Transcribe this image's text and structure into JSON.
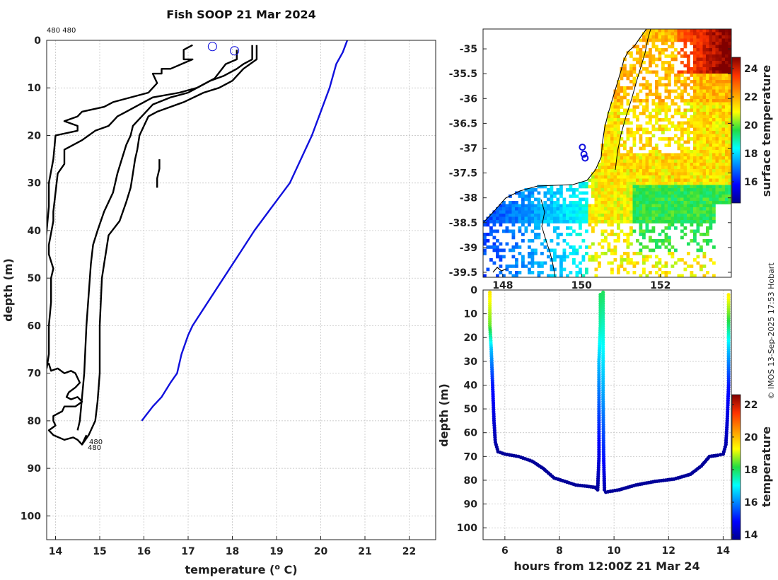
{
  "chart_data": [
    {
      "type": "line",
      "title": "Fish SOOP 21 Mar 2024",
      "corner_label": "480 480",
      "xlabel": "temperature (",
      "xlabel_sup": "o",
      "xlabel_end": " C)",
      "ylabel": "depth (m)",
      "xlim": [
        13.8,
        22.6
      ],
      "ylim": [
        105,
        0
      ],
      "xticks": [
        14,
        15,
        16,
        17,
        18,
        19,
        20,
        21,
        22
      ],
      "yticks": [
        0,
        10,
        20,
        30,
        40,
        50,
        60,
        70,
        80,
        90,
        100
      ],
      "tag_labels": [
        "480",
        "480"
      ],
      "series": [
        {
          "name": "profile-1",
          "color": "#000000",
          "points": [
            [
              17.1,
              1
            ],
            [
              16.9,
              2
            ],
            [
              16.9,
              4
            ],
            [
              17.1,
              4
            ],
            [
              16.6,
              6
            ],
            [
              16.4,
              6
            ],
            [
              16.4,
              7
            ],
            [
              16.2,
              7
            ],
            [
              16.3,
              9
            ],
            [
              16.1,
              11
            ],
            [
              15.3,
              13
            ],
            [
              15.1,
              14
            ],
            [
              14.6,
              15
            ],
            [
              14.5,
              16
            ],
            [
              14.2,
              17
            ],
            [
              14.5,
              18
            ],
            [
              14.5,
              19
            ],
            [
              14.0,
              20
            ],
            [
              13.95,
              25
            ],
            [
              13.85,
              30
            ],
            [
              13.85,
              35
            ],
            [
              13.8,
              40
            ],
            [
              13.75,
              45
            ],
            [
              13.7,
              55
            ],
            [
              13.7,
              65
            ],
            [
              13.7,
              69
            ]
          ]
        },
        {
          "name": "profile-2",
          "color": "#000000",
          "points": [
            [
              18.1,
              2
            ],
            [
              18.1,
              4
            ],
            [
              17.85,
              5
            ],
            [
              17.6,
              8
            ],
            [
              17.2,
              10
            ],
            [
              16.8,
              11
            ],
            [
              16.2,
              12
            ],
            [
              15.9,
              13.5
            ],
            [
              15.6,
              15
            ],
            [
              15.4,
              16
            ],
            [
              15.3,
              17
            ],
            [
              15.2,
              18
            ],
            [
              14.9,
              19
            ],
            [
              14.6,
              21
            ],
            [
              14.2,
              23
            ],
            [
              14.2,
              26
            ],
            [
              14.05,
              28
            ],
            [
              14.0,
              32
            ],
            [
              13.95,
              36
            ],
            [
              13.95,
              38
            ],
            [
              13.85,
              43
            ],
            [
              13.85,
              45
            ],
            [
              13.95,
              48
            ],
            [
              13.9,
              50
            ],
            [
              13.9,
              55
            ],
            [
              13.85,
              60
            ],
            [
              13.85,
              66
            ],
            [
              13.8,
              69
            ]
          ]
        },
        {
          "name": "profile-3",
          "color": "#000000",
          "points": [
            [
              18.45,
              1
            ],
            [
              18.45,
              4
            ],
            [
              18.25,
              5
            ],
            [
              18.1,
              6
            ],
            [
              17.8,
              7.5
            ],
            [
              17.5,
              8.5
            ],
            [
              17.0,
              11
            ],
            [
              16.6,
              12
            ],
            [
              16.2,
              13.5
            ],
            [
              16.05,
              15
            ],
            [
              15.85,
              17
            ],
            [
              15.75,
              18
            ],
            [
              15.7,
              20
            ],
            [
              15.6,
              22
            ],
            [
              15.5,
              25
            ],
            [
              15.4,
              28
            ],
            [
              15.3,
              32
            ],
            [
              15.1,
              36
            ],
            [
              14.95,
              40
            ],
            [
              14.85,
              43
            ],
            [
              14.8,
              47
            ],
            [
              14.7,
              60
            ],
            [
              14.65,
              70
            ],
            [
              14.6,
              75
            ],
            [
              14.55,
              80
            ],
            [
              14.5,
              82
            ]
          ]
        },
        {
          "name": "profile-4",
          "color": "#000000",
          "points": [
            [
              18.55,
              1
            ],
            [
              18.55,
              4
            ],
            [
              18.25,
              6
            ],
            [
              18.0,
              8.5
            ],
            [
              17.7,
              10
            ],
            [
              17.35,
              11
            ],
            [
              16.9,
              13
            ],
            [
              16.6,
              14
            ],
            [
              16.3,
              15
            ],
            [
              16.1,
              16
            ],
            [
              16.0,
              18
            ],
            [
              15.9,
              20
            ],
            [
              15.85,
              23
            ],
            [
              15.8,
              25
            ],
            [
              15.75,
              28
            ],
            [
              15.7,
              31
            ],
            [
              15.6,
              34
            ],
            [
              15.45,
              38
            ],
            [
              15.2,
              41
            ],
            [
              15.15,
              44
            ],
            [
              15.1,
              47
            ],
            [
              15.05,
              50
            ],
            [
              15.0,
              60
            ],
            [
              15.0,
              70
            ],
            [
              14.95,
              76
            ],
            [
              14.9,
              80
            ],
            [
              14.75,
              83
            ],
            [
              14.6,
              85
            ]
          ]
        },
        {
          "name": "profile-5",
          "color": "#000000",
          "points": [
            [
              16.35,
              25
            ],
            [
              16.35,
              27
            ],
            [
              16.3,
              29
            ],
            [
              16.3,
              31
            ]
          ]
        },
        {
          "name": "profile-6",
          "color": "#000000",
          "points": [
            [
              13.7,
              69
            ],
            [
              13.85,
              68
            ],
            [
              13.9,
              69.5
            ],
            [
              14.05,
              69
            ],
            [
              14.2,
              70
            ],
            [
              14.35,
              69.5
            ],
            [
              14.45,
              70
            ],
            [
              14.5,
              71
            ],
            [
              14.55,
              72
            ],
            [
              14.45,
              73
            ],
            [
              14.3,
              74
            ],
            [
              14.25,
              75
            ],
            [
              14.35,
              75.5
            ],
            [
              14.5,
              75
            ],
            [
              14.6,
              76
            ],
            [
              14.45,
              77
            ],
            [
              14.2,
              77
            ],
            [
              14.15,
              78
            ],
            [
              14.05,
              78.5
            ],
            [
              13.95,
              79
            ],
            [
              13.95,
              80
            ],
            [
              14.0,
              81
            ],
            [
              13.85,
              82
            ],
            [
              13.95,
              83
            ],
            [
              14.2,
              84
            ],
            [
              14.4,
              83.5
            ],
            [
              14.5,
              84
            ],
            [
              14.6,
              85
            ],
            [
              14.7,
              83
            ]
          ]
        },
        {
          "name": "surface-model",
          "color": "#1010dd",
          "points": [
            [
              20.6,
              0
            ],
            [
              20.5,
              2.5
            ],
            [
              20.35,
              5
            ],
            [
              20.2,
              10
            ],
            [
              20.0,
              15
            ],
            [
              19.8,
              20
            ],
            [
              19.55,
              25
            ],
            [
              19.3,
              30
            ],
            [
              18.9,
              35
            ],
            [
              18.5,
              40
            ],
            [
              18.15,
              45
            ],
            [
              17.8,
              50
            ],
            [
              17.45,
              55
            ],
            [
              17.1,
              60
            ],
            [
              17.0,
              62
            ],
            [
              16.85,
              66
            ],
            [
              16.75,
              70
            ],
            [
              16.6,
              72
            ],
            [
              16.4,
              75
            ],
            [
              16.2,
              77
            ],
            [
              15.95,
              80
            ]
          ]
        }
      ],
      "markers": [
        {
          "x": 17.55,
          "y": 1.3
        },
        {
          "x": 18.05,
          "y": 2.2
        }
      ]
    },
    {
      "type": "heatmap",
      "xlim": [
        147.5,
        153.8
      ],
      "ylim": [
        -39.6,
        -34.6
      ],
      "xticks": [
        148,
        150,
        152
      ],
      "xtick_labels": [
        "148",
        "150",
        "152"
      ],
      "yticks": [
        -35,
        -35.5,
        -36,
        -36.5,
        -37,
        -37.5,
        -38,
        -38.5,
        -39,
        -39.5
      ],
      "colorbar_label": "surface temperature",
      "colorbar_ticks": [
        16,
        18,
        20,
        22,
        24
      ],
      "colorbar_range": [
        14.5,
        24.8
      ],
      "track_points": [
        [
          150.02,
          -36.98
        ],
        [
          150.06,
          -37.12
        ],
        [
          150.09,
          -37.2
        ]
      ]
    },
    {
      "type": "scatter",
      "xlabel": "hours from 12:00Z 21 Mar 24",
      "ylabel": "depth (m)",
      "xlim": [
        5.2,
        14.3
      ],
      "ylim": [
        105,
        0
      ],
      "xticks": [
        6,
        8,
        10,
        12,
        14
      ],
      "yticks": [
        0,
        10,
        20,
        30,
        40,
        50,
        60,
        70,
        80,
        90,
        100
      ],
      "colorbar_label": "temperature",
      "colorbar_ticks": [
        14,
        16,
        18,
        20,
        22
      ],
      "colorbar_range": [
        13.7,
        22.6
      ],
      "segments": [
        {
          "path": [
            [
              5.45,
              1
            ],
            [
              5.45,
              15
            ],
            [
              5.5,
              25
            ],
            [
              5.55,
              40
            ],
            [
              5.6,
              55
            ],
            [
              5.65,
              64
            ],
            [
              5.75,
              68
            ],
            [
              6.0,
              69
            ],
            [
              6.5,
              70
            ],
            [
              7.0,
              72
            ],
            [
              7.4,
              75
            ],
            [
              7.8,
              79
            ],
            [
              8.2,
              80.5
            ],
            [
              8.6,
              82
            ],
            [
              9.0,
              82.5
            ],
            [
              9.3,
              83
            ],
            [
              9.4,
              84
            ]
          ],
          "temps": [
            19.5,
            18.5,
            16.5,
            15.0,
            14.4,
            14.0,
            13.8,
            13.8,
            13.8,
            13.8,
            13.8,
            13.8,
            13.8,
            13.8,
            13.8,
            13.8,
            13.8
          ]
        },
        {
          "path": [
            [
              9.4,
              84
            ],
            [
              9.45,
              70
            ],
            [
              9.45,
              50
            ],
            [
              9.45,
              30
            ],
            [
              9.5,
              15
            ],
            [
              9.5,
              1
            ]
          ],
          "temps": [
            13.8,
            14.5,
            15.5,
            16.5,
            17.5,
            18.0
          ]
        },
        {
          "path": [
            [
              9.6,
              1
            ],
            [
              9.6,
              20
            ],
            [
              9.6,
              45
            ],
            [
              9.62,
              70
            ],
            [
              9.65,
              84
            ],
            [
              9.7,
              85
            ]
          ],
          "temps": [
            18.0,
            17.2,
            16.2,
            15.0,
            14.0,
            13.8
          ]
        },
        {
          "path": [
            [
              9.7,
              85
            ],
            [
              10.2,
              84
            ],
            [
              10.8,
              82
            ],
            [
              11.5,
              80.5
            ],
            [
              12.2,
              79.5
            ],
            [
              12.8,
              77.5
            ],
            [
              13.2,
              74
            ],
            [
              13.5,
              70
            ],
            [
              13.8,
              69.5
            ],
            [
              14.0,
              69
            ],
            [
              14.1,
              65
            ],
            [
              14.15,
              55
            ],
            [
              14.2,
              40
            ],
            [
              14.2,
              25
            ],
            [
              14.2,
              10
            ],
            [
              14.2,
              1
            ]
          ],
          "temps": [
            13.8,
            13.8,
            13.8,
            13.8,
            13.8,
            13.8,
            13.8,
            13.8,
            13.8,
            13.8,
            14.0,
            14.4,
            15.0,
            16.5,
            18.5,
            19.5
          ]
        }
      ]
    }
  ],
  "credit": "© IMOS 13-Sep-2025 17:53 Hobart"
}
